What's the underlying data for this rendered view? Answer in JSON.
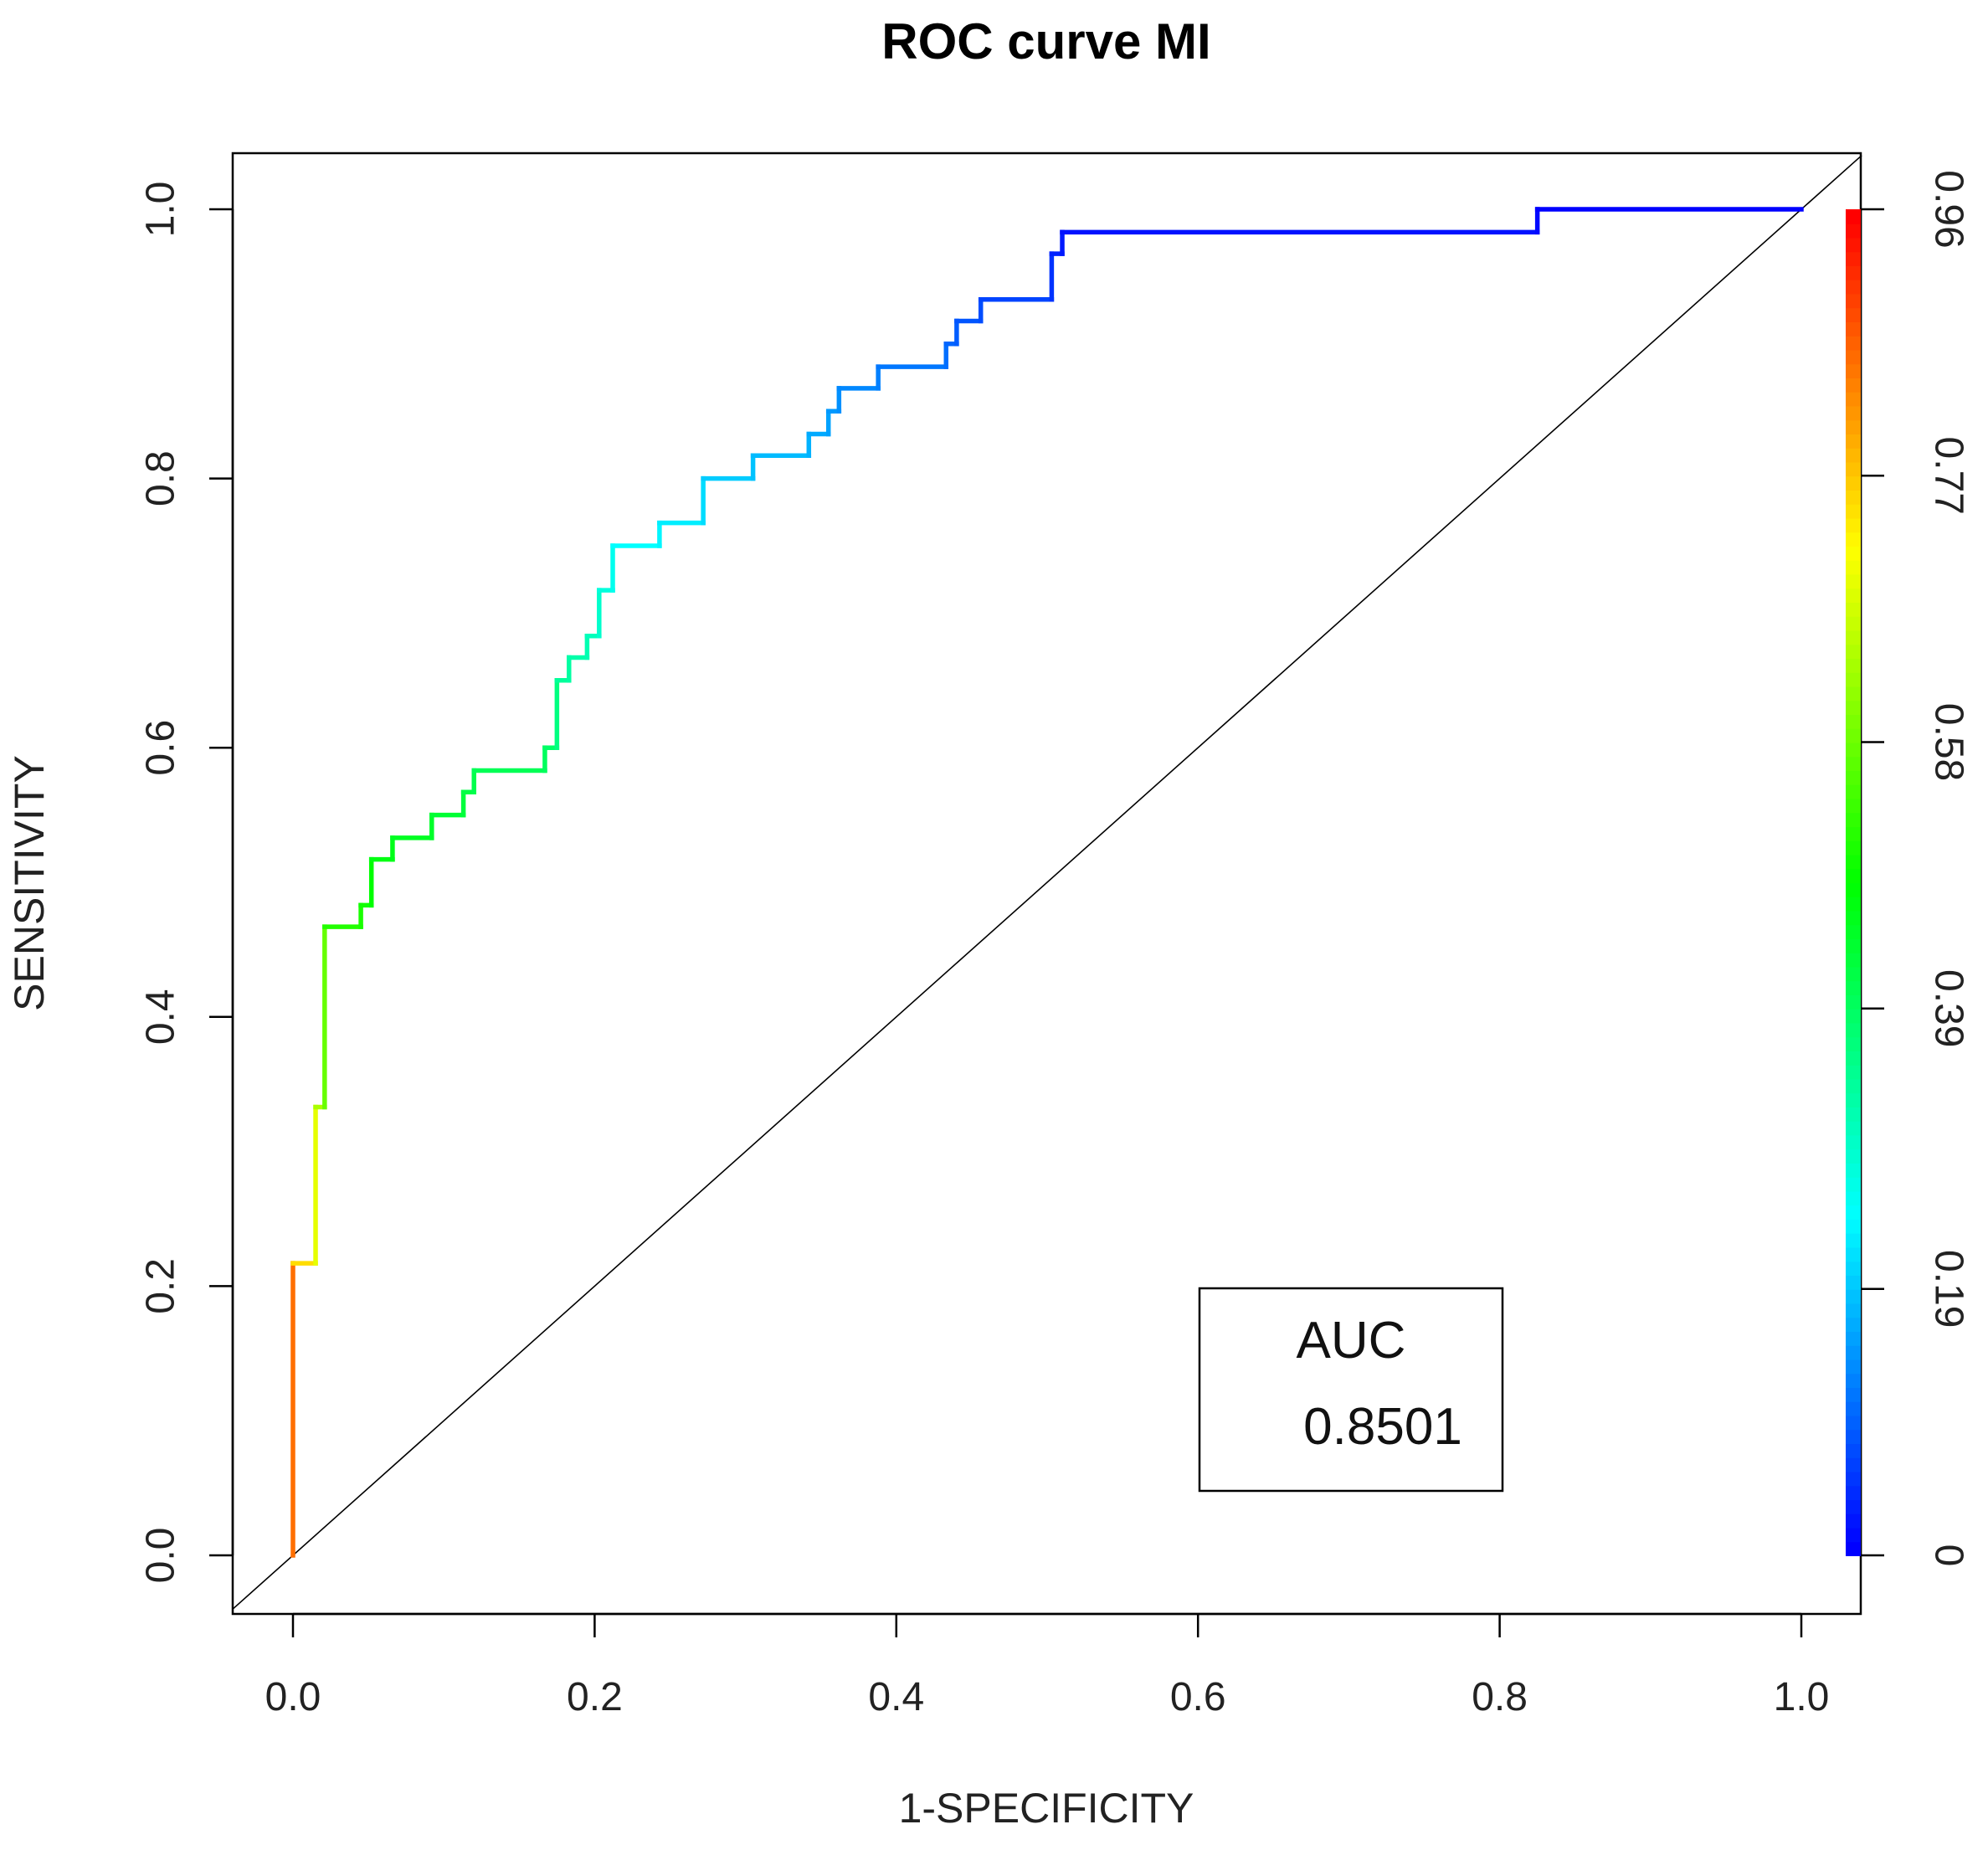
{
  "chart_data": {
    "type": "line",
    "title": "ROC curve MI",
    "xlabel": "1-SPECIFICITY",
    "ylabel": "SENSITIVITY",
    "xlim": [
      -0.04,
      1.04
    ],
    "ylim": [
      -0.04,
      1.04
    ],
    "x_ticks": [
      0.0,
      0.2,
      0.4,
      0.6,
      0.8,
      1.0
    ],
    "x_tick_labels": [
      "0.0",
      "0.2",
      "0.4",
      "0.6",
      "0.8",
      "1.0"
    ],
    "y_ticks": [
      0.0,
      0.2,
      0.4,
      0.6,
      0.8,
      1.0
    ],
    "y_tick_labels": [
      "0.0",
      "0.2",
      "0.4",
      "0.6",
      "0.8",
      "1.0"
    ],
    "colorbar": {
      "ticks": [
        0,
        0.19,
        0.39,
        0.58,
        0.77,
        0.96
      ],
      "tick_labels": [
        "0",
        "0.19",
        "0.39",
        "0.58",
        "0.77",
        "0.96"
      ],
      "range": [
        0,
        0.96
      ]
    },
    "series": [
      {
        "name": "ROC",
        "colormap": "rainbow-by-threshold",
        "points": [
          [
            0.0,
            0.0
          ],
          [
            0.0,
            0.217
          ],
          [
            0.015,
            0.217
          ],
          [
            0.015,
            0.333
          ],
          [
            0.021,
            0.333
          ],
          [
            0.021,
            0.467
          ],
          [
            0.045,
            0.467
          ],
          [
            0.045,
            0.483
          ],
          [
            0.052,
            0.483
          ],
          [
            0.052,
            0.517
          ],
          [
            0.066,
            0.517
          ],
          [
            0.066,
            0.533
          ],
          [
            0.092,
            0.533
          ],
          [
            0.092,
            0.55
          ],
          [
            0.113,
            0.55
          ],
          [
            0.113,
            0.567
          ],
          [
            0.12,
            0.567
          ],
          [
            0.12,
            0.583
          ],
          [
            0.167,
            0.583
          ],
          [
            0.167,
            0.6
          ],
          [
            0.175,
            0.6
          ],
          [
            0.175,
            0.65
          ],
          [
            0.183,
            0.65
          ],
          [
            0.183,
            0.667
          ],
          [
            0.195,
            0.667
          ],
          [
            0.195,
            0.683
          ],
          [
            0.203,
            0.683
          ],
          [
            0.203,
            0.717
          ],
          [
            0.212,
            0.717
          ],
          [
            0.212,
            0.75
          ],
          [
            0.243,
            0.75
          ],
          [
            0.243,
            0.767
          ],
          [
            0.272,
            0.767
          ],
          [
            0.272,
            0.8
          ],
          [
            0.305,
            0.8
          ],
          [
            0.305,
            0.817
          ],
          [
            0.342,
            0.817
          ],
          [
            0.342,
            0.833
          ],
          [
            0.355,
            0.833
          ],
          [
            0.355,
            0.85
          ],
          [
            0.362,
            0.85
          ],
          [
            0.362,
            0.867
          ],
          [
            0.388,
            0.867
          ],
          [
            0.388,
            0.883
          ],
          [
            0.433,
            0.883
          ],
          [
            0.433,
            0.9
          ],
          [
            0.44,
            0.9
          ],
          [
            0.44,
            0.917
          ],
          [
            0.456,
            0.917
          ],
          [
            0.456,
            0.933
          ],
          [
            0.503,
            0.933
          ],
          [
            0.503,
            0.967
          ],
          [
            0.51,
            0.967
          ],
          [
            0.51,
            0.983
          ],
          [
            0.825,
            0.983
          ],
          [
            0.825,
            1.0
          ],
          [
            1.0,
            1.0
          ]
        ]
      },
      {
        "name": "reference",
        "points": [
          [
            -0.04,
            -0.04
          ],
          [
            1.04,
            1.04
          ]
        ]
      }
    ],
    "legend": {
      "position": "bottom-right",
      "label": "AUC",
      "value": "0.8501"
    },
    "grid": false
  }
}
